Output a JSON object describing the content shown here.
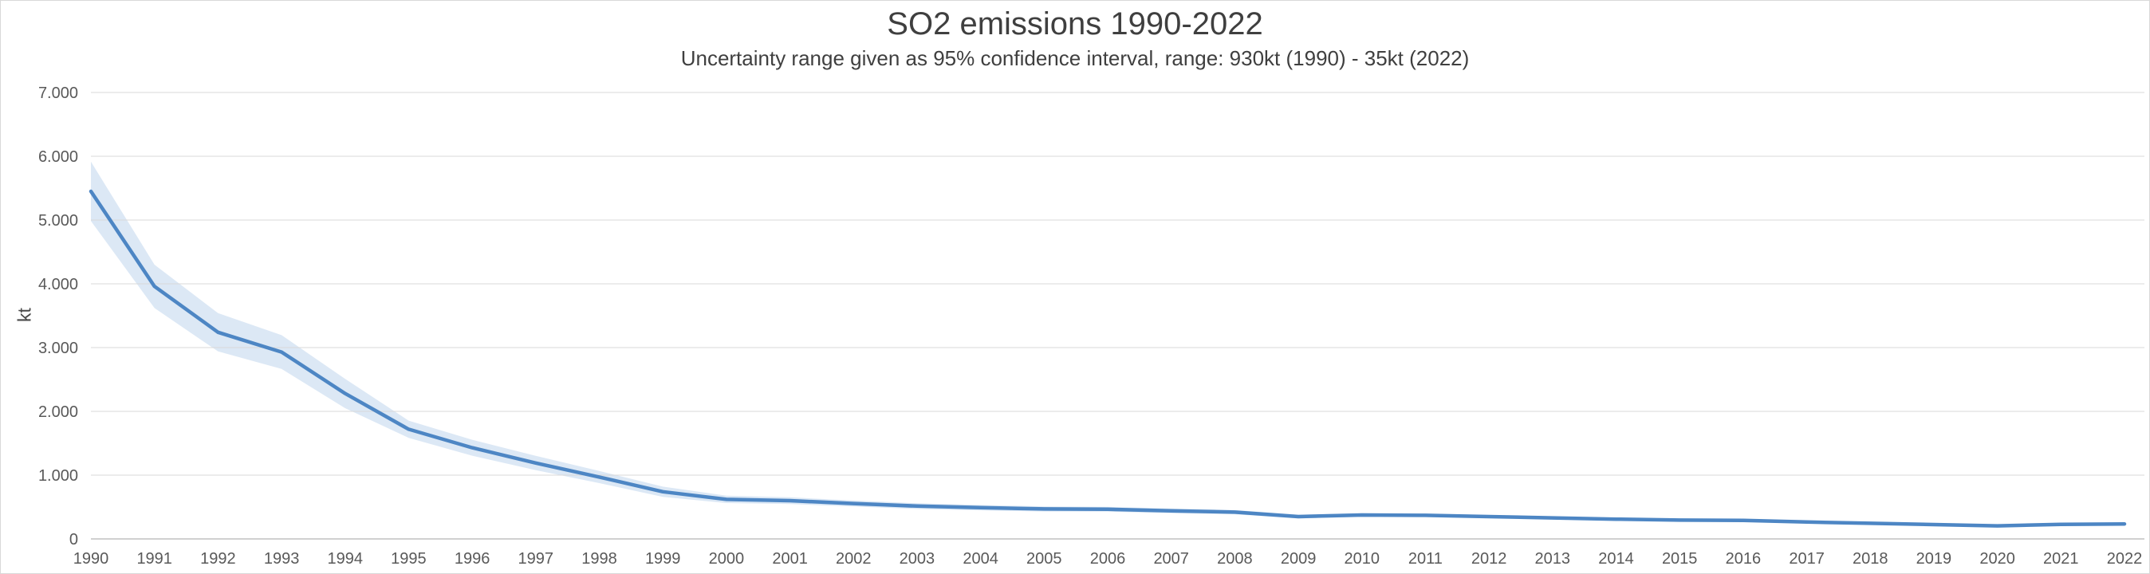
{
  "chart": {
    "title": "SO2 emissions 1990-2022",
    "subtitle": "Uncertainty range given as 95% confidence interval, range: 930kt (1990) - 35kt (2022)",
    "ylabel": "kt"
  },
  "chart_data": {
    "type": "line",
    "title": "SO2 emissions 1990-2022",
    "subtitle": "Uncertainty range given as 95% confidence interval, range: 930kt (1990) - 35kt (2022)",
    "xlabel": "",
    "ylabel": "kt",
    "x": [
      1990,
      1991,
      1992,
      1993,
      1994,
      1995,
      1996,
      1997,
      1998,
      1999,
      2000,
      2001,
      2002,
      2003,
      2004,
      2005,
      2006,
      2007,
      2008,
      2009,
      2010,
      2011,
      2012,
      2013,
      2014,
      2015,
      2016,
      2017,
      2018,
      2019,
      2020,
      2021,
      2022
    ],
    "series": [
      {
        "name": "SO2 emissions (kt)",
        "values": [
          5450,
          3960,
          3240,
          2930,
          2280,
          1720,
          1430,
          1190,
          970,
          740,
          620,
          600,
          555,
          515,
          490,
          470,
          465,
          440,
          420,
          350,
          375,
          370,
          350,
          330,
          310,
          295,
          290,
          265,
          245,
          225,
          205,
          228,
          235
        ]
      },
      {
        "name": "95% CI upper",
        "values": [
          5915,
          4300,
          3540,
          3195,
          2510,
          1855,
          1555,
          1302,
          1065,
          820,
          678,
          652,
          603,
          560,
          532,
          510,
          503,
          476,
          454,
          380,
          403,
          396,
          375,
          354,
          332,
          316,
          310,
          284,
          263,
          241,
          220,
          244,
          253
        ]
      },
      {
        "name": "95% CI lower",
        "values": [
          4985,
          3620,
          2940,
          2665,
          2050,
          1585,
          1305,
          1078,
          875,
          660,
          562,
          548,
          507,
          470,
          448,
          430,
          427,
          404,
          386,
          320,
          347,
          344,
          325,
          306,
          288,
          274,
          270,
          246,
          227,
          209,
          190,
          212,
          217
        ]
      }
    ],
    "ylim": [
      0,
      7000
    ],
    "yticks": {
      "values": [
        0,
        1000,
        2000,
        3000,
        4000,
        5000,
        6000,
        7000
      ],
      "labels": [
        "0",
        "1.000",
        "2.000",
        "3.000",
        "4.000",
        "5.000",
        "6.000",
        "7.000"
      ]
    },
    "grid": true,
    "legend": "none"
  },
  "colors": {
    "line": "#4d86c4",
    "band": "#dce8f5",
    "gridline": "#d9d9d9",
    "axis_line": "#c0c0c0",
    "tick_text": "#595959",
    "title_text": "#3f3f3f"
  }
}
